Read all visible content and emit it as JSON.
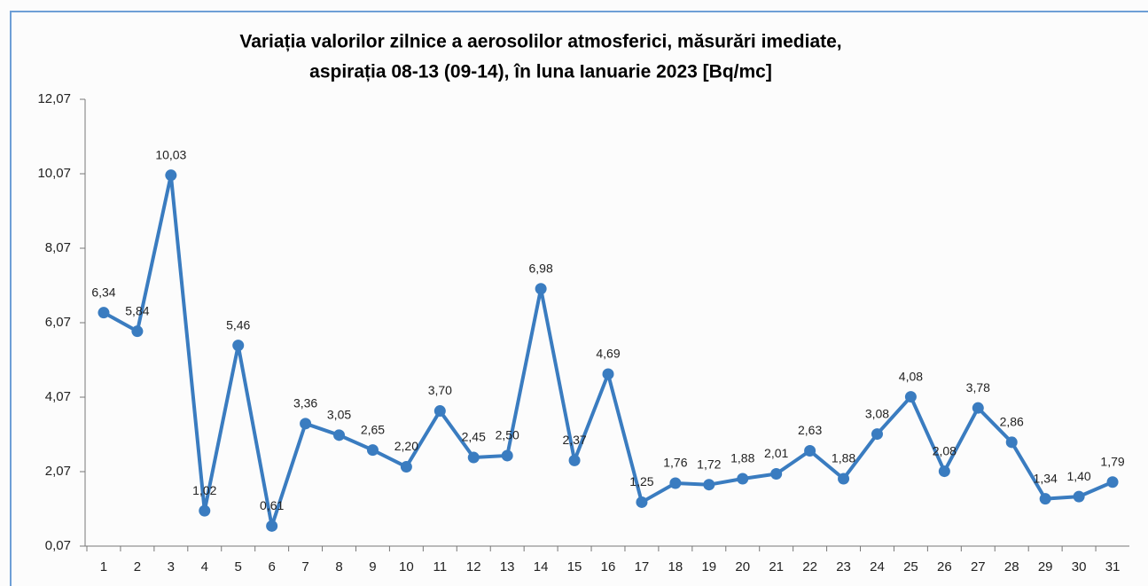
{
  "chart_data": {
    "type": "line",
    "title": [
      "Variația valorilor zilnice a aerosolilor atmosferici, măsurări imediate,",
      "aspirația 08-13 (09-14),  în luna Ianuarie 2023 [Bq/mc]"
    ],
    "categories": [
      "1",
      "2",
      "3",
      "4",
      "5",
      "6",
      "7",
      "8",
      "9",
      "10",
      "11",
      "12",
      "13",
      "14",
      "15",
      "16",
      "17",
      "18",
      "19",
      "20",
      "21",
      "22",
      "23",
      "24",
      "25",
      "26",
      "27",
      "28",
      "29",
      "30",
      "31"
    ],
    "series": [
      {
        "name": null,
        "color": "#3a7cc0",
        "values": [
          6.34,
          5.84,
          10.03,
          1.02,
          5.46,
          0.61,
          3.36,
          3.05,
          2.65,
          2.2,
          3.7,
          2.45,
          2.5,
          6.98,
          2.37,
          4.69,
          1.25,
          1.76,
          1.72,
          1.88,
          2.01,
          2.63,
          1.88,
          3.08,
          4.08,
          2.08,
          3.78,
          2.86,
          1.34,
          1.4,
          1.79
        ],
        "value_labels": [
          "6,34",
          "5,84",
          "10,03",
          "1,02",
          "5,46",
          "0,61",
          "3,36",
          "3,05",
          "2,65",
          "2,20",
          "3,70",
          "2,45",
          "2,50",
          "6,98",
          "2,37",
          "4,69",
          "1,25",
          "1,76",
          "1,72",
          "1,88",
          "2,01",
          "2,63",
          "1,88",
          "3,08",
          "4,08",
          "2,08",
          "3,78",
          "2,86",
          "1,34",
          "1,40",
          "1,79"
        ]
      }
    ],
    "ylim": [
      0.07,
      12.07
    ],
    "yticks": [
      {
        "value": 0.07,
        "label": "0,07"
      },
      {
        "value": 2.07,
        "label": "2,07"
      },
      {
        "value": 4.07,
        "label": "4,07"
      },
      {
        "value": 6.07,
        "label": "6,07"
      },
      {
        "value": 8.07,
        "label": "8,07"
      },
      {
        "value": 10.07,
        "label": "10,07"
      },
      {
        "value": 12.07,
        "label": "12,07"
      }
    ],
    "grid": false
  }
}
